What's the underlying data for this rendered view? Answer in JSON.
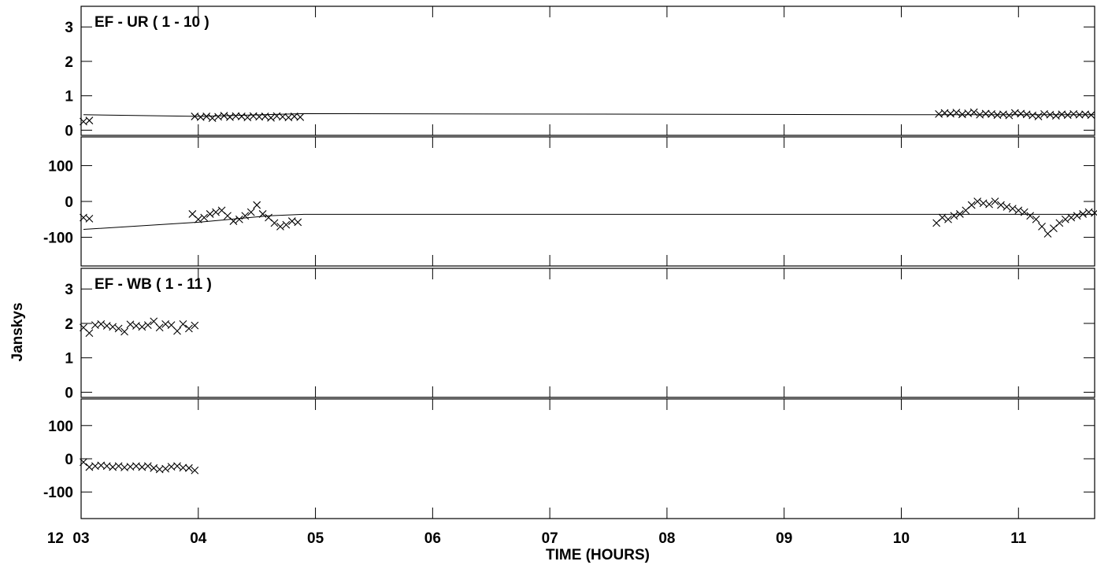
{
  "chart_data": {
    "type": "scatter",
    "xlabel": "TIME (HOURS)",
    "ylabel": "Janskys",
    "date_prefix": "12",
    "xlim": [
      3.0,
      11.65
    ],
    "x_ticks": [
      {
        "value": 3,
        "label": "03"
      },
      {
        "value": 4,
        "label": "04"
      },
      {
        "value": 5,
        "label": "05"
      },
      {
        "value": 6,
        "label": "06"
      },
      {
        "value": 7,
        "label": "07"
      },
      {
        "value": 8,
        "label": "08"
      },
      {
        "value": 9,
        "label": "09"
      },
      {
        "value": 10,
        "label": "10"
      },
      {
        "value": 11,
        "label": "11"
      }
    ],
    "panels": [
      {
        "baseline": "EF - UR ( 1 - 10 )",
        "amplitude": {
          "ylim": [
            -0.15,
            3.6
          ],
          "ticks": [
            0,
            1,
            2,
            3
          ],
          "points": [
            [
              3.02,
              0.25
            ],
            [
              3.07,
              0.28
            ],
            [
              3.97,
              0.4
            ],
            [
              4.02,
              0.38
            ],
            [
              4.07,
              0.4
            ],
            [
              4.12,
              0.35
            ],
            [
              4.17,
              0.39
            ],
            [
              4.22,
              0.42
            ],
            [
              4.27,
              0.38
            ],
            [
              4.32,
              0.41
            ],
            [
              4.37,
              0.4
            ],
            [
              4.42,
              0.37
            ],
            [
              4.47,
              0.41
            ],
            [
              4.52,
              0.39
            ],
            [
              4.57,
              0.4
            ],
            [
              4.62,
              0.36
            ],
            [
              4.67,
              0.41
            ],
            [
              4.72,
              0.39
            ],
            [
              4.77,
              0.37
            ],
            [
              4.82,
              0.4
            ],
            [
              4.87,
              0.38
            ],
            [
              10.32,
              0.47
            ],
            [
              10.37,
              0.5
            ],
            [
              10.42,
              0.48
            ],
            [
              10.47,
              0.51
            ],
            [
              10.52,
              0.46
            ],
            [
              10.57,
              0.49
            ],
            [
              10.62,
              0.52
            ],
            [
              10.67,
              0.45
            ],
            [
              10.72,
              0.48
            ],
            [
              10.77,
              0.47
            ],
            [
              10.82,
              0.44
            ],
            [
              10.87,
              0.46
            ],
            [
              10.92,
              0.43
            ],
            [
              10.97,
              0.5
            ],
            [
              11.02,
              0.48
            ],
            [
              11.07,
              0.46
            ],
            [
              11.12,
              0.43
            ],
            [
              11.17,
              0.4
            ],
            [
              11.22,
              0.47
            ],
            [
              11.27,
              0.45
            ],
            [
              11.32,
              0.42
            ],
            [
              11.37,
              0.46
            ],
            [
              11.42,
              0.44
            ],
            [
              11.47,
              0.47
            ],
            [
              11.52,
              0.45
            ],
            [
              11.57,
              0.46
            ],
            [
              11.62,
              0.44
            ]
          ],
          "model": [
            [
              3.02,
              0.45
            ],
            [
              4.0,
              0.4
            ],
            [
              4.9,
              0.48
            ],
            [
              10.3,
              0.45
            ],
            [
              11.65,
              0.45
            ]
          ]
        },
        "phase": {
          "ylim": [
            -180,
            180
          ],
          "ticks": [
            -100,
            0,
            100
          ],
          "points": [
            [
              3.02,
              -45
            ],
            [
              3.07,
              -48
            ],
            [
              3.95,
              -35
            ],
            [
              4.0,
              -50
            ],
            [
              4.05,
              -45
            ],
            [
              4.1,
              -35
            ],
            [
              4.15,
              -30
            ],
            [
              4.2,
              -25
            ],
            [
              4.25,
              -40
            ],
            [
              4.3,
              -55
            ],
            [
              4.35,
              -50
            ],
            [
              4.4,
              -40
            ],
            [
              4.45,
              -30
            ],
            [
              4.5,
              -10
            ],
            [
              4.55,
              -35
            ],
            [
              4.6,
              -45
            ],
            [
              4.65,
              -60
            ],
            [
              4.7,
              -70
            ],
            [
              4.75,
              -65
            ],
            [
              4.8,
              -55
            ],
            [
              4.85,
              -58
            ],
            [
              10.3,
              -60
            ],
            [
              10.35,
              -45
            ],
            [
              10.4,
              -50
            ],
            [
              10.45,
              -40
            ],
            [
              10.5,
              -35
            ],
            [
              10.55,
              -25
            ],
            [
              10.6,
              -10
            ],
            [
              10.65,
              0
            ],
            [
              10.7,
              -5
            ],
            [
              10.75,
              -8
            ],
            [
              10.8,
              0
            ],
            [
              10.85,
              -10
            ],
            [
              10.9,
              -15
            ],
            [
              10.95,
              -20
            ],
            [
              11.0,
              -25
            ],
            [
              11.05,
              -30
            ],
            [
              11.1,
              -40
            ],
            [
              11.15,
              -50
            ],
            [
              11.2,
              -70
            ],
            [
              11.25,
              -90
            ],
            [
              11.3,
              -75
            ],
            [
              11.35,
              -60
            ],
            [
              11.4,
              -50
            ],
            [
              11.45,
              -45
            ],
            [
              11.5,
              -40
            ],
            [
              11.55,
              -35
            ],
            [
              11.6,
              -30
            ],
            [
              11.65,
              -32
            ]
          ],
          "model": [
            [
              3.02,
              -78
            ],
            [
              4.0,
              -58
            ],
            [
              4.6,
              -40
            ],
            [
              4.9,
              -36
            ],
            [
              10.3,
              -36
            ],
            [
              11.65,
              -36
            ]
          ]
        }
      },
      {
        "baseline": "EF - WB ( 1 - 11 )",
        "amplitude": {
          "ylim": [
            -0.15,
            3.6
          ],
          "ticks": [
            0,
            1,
            2,
            3
          ],
          "points": [
            [
              3.02,
              1.88
            ],
            [
              3.07,
              1.72
            ],
            [
              3.12,
              1.95
            ],
            [
              3.17,
              1.98
            ],
            [
              3.22,
              1.93
            ],
            [
              3.27,
              1.9
            ],
            [
              3.32,
              1.85
            ],
            [
              3.37,
              1.76
            ],
            [
              3.42,
              1.97
            ],
            [
              3.47,
              1.93
            ],
            [
              3.52,
              1.9
            ],
            [
              3.57,
              1.95
            ],
            [
              3.62,
              2.06
            ],
            [
              3.67,
              1.88
            ],
            [
              3.72,
              1.98
            ],
            [
              3.77,
              1.95
            ],
            [
              3.82,
              1.78
            ],
            [
              3.87,
              1.98
            ],
            [
              3.92,
              1.85
            ],
            [
              3.97,
              1.94
            ]
          ],
          "model": []
        },
        "phase": {
          "ylim": [
            -180,
            180
          ],
          "ticks": [
            -100,
            0,
            100
          ],
          "points": [
            [
              3.02,
              -10
            ],
            [
              3.07,
              -25
            ],
            [
              3.12,
              -22
            ],
            [
              3.17,
              -20
            ],
            [
              3.22,
              -22
            ],
            [
              3.27,
              -25
            ],
            [
              3.32,
              -22
            ],
            [
              3.37,
              -26
            ],
            [
              3.42,
              -24
            ],
            [
              3.47,
              -22
            ],
            [
              3.52,
              -25
            ],
            [
              3.57,
              -22
            ],
            [
              3.62,
              -28
            ],
            [
              3.67,
              -32
            ],
            [
              3.72,
              -30
            ],
            [
              3.77,
              -24
            ],
            [
              3.82,
              -22
            ],
            [
              3.87,
              -27
            ],
            [
              3.92,
              -28
            ],
            [
              3.97,
              -35
            ]
          ],
          "model": []
        }
      }
    ]
  }
}
